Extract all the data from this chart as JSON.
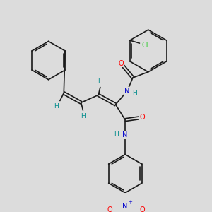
{
  "background_color": "#dcdcdc",
  "bond_color": "#1a1a1a",
  "atom_colors": {
    "H": "#008b8b",
    "N": "#0000cd",
    "O": "#ff0000",
    "Cl": "#32cd32"
  },
  "lw": 1.2,
  "fs": 7.5
}
